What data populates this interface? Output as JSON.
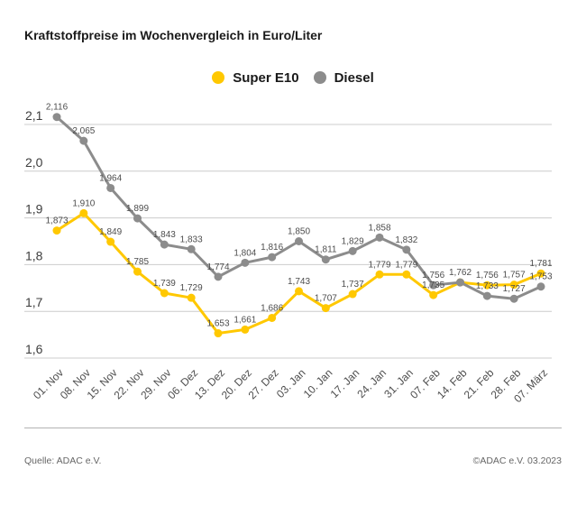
{
  "title": "Kraftstoffpreise im Wochenvergleich in Euro/Liter",
  "legend": [
    {
      "label": "Super E10",
      "color": "#FFC800"
    },
    {
      "label": "Diesel",
      "color": "#8C8C8C"
    }
  ],
  "footer": {
    "source": "Quelle: ADAC e.V.",
    "copyright": "©ADAC e.V. 03.2023"
  },
  "colors": {
    "grid": "#cccccc",
    "axis_text": "#3d3d3d",
    "label_text": "#4d4d4d"
  },
  "chart_data": {
    "type": "line",
    "title": "Kraftstoffpreise im Wochenvergleich in Euro/Liter",
    "categories": [
      "01. Nov",
      "08. Nov",
      "15. Nov",
      "22. Nov",
      "29. Nov",
      "06. Dez",
      "13. Dez",
      "20. Dez",
      "27. Dez",
      "03. Jan",
      "10. Jan",
      "17. Jan",
      "24. Jan",
      "31. Jan",
      "07. Feb",
      "14. Feb",
      "21. Feb",
      "28. Feb",
      "07. März"
    ],
    "series": [
      {
        "name": "Super E10",
        "color": "#FFC800",
        "values": [
          1.873,
          1.91,
          1.849,
          1.785,
          1.739,
          1.729,
          1.653,
          1.661,
          1.686,
          1.743,
          1.707,
          1.737,
          1.779,
          1.779,
          1.735,
          1.762,
          1.756,
          1.757,
          1.781
        ],
        "hide_label_at": [
          15
        ]
      },
      {
        "name": "Diesel",
        "color": "#8C8C8C",
        "values": [
          2.116,
          2.065,
          1.964,
          1.899,
          1.843,
          1.833,
          1.774,
          1.804,
          1.816,
          1.85,
          1.811,
          1.829,
          1.858,
          1.832,
          1.756,
          1.762,
          1.733,
          1.727,
          1.753
        ],
        "hide_label_at": []
      }
    ],
    "ylim": [
      1.6,
      2.1
    ],
    "yticks": [
      1.6,
      1.7,
      1.8,
      1.9,
      2.0,
      2.1
    ],
    "decimal_separator": ",",
    "grid": true,
    "legend_position": "top-center",
    "data_labels": true
  }
}
